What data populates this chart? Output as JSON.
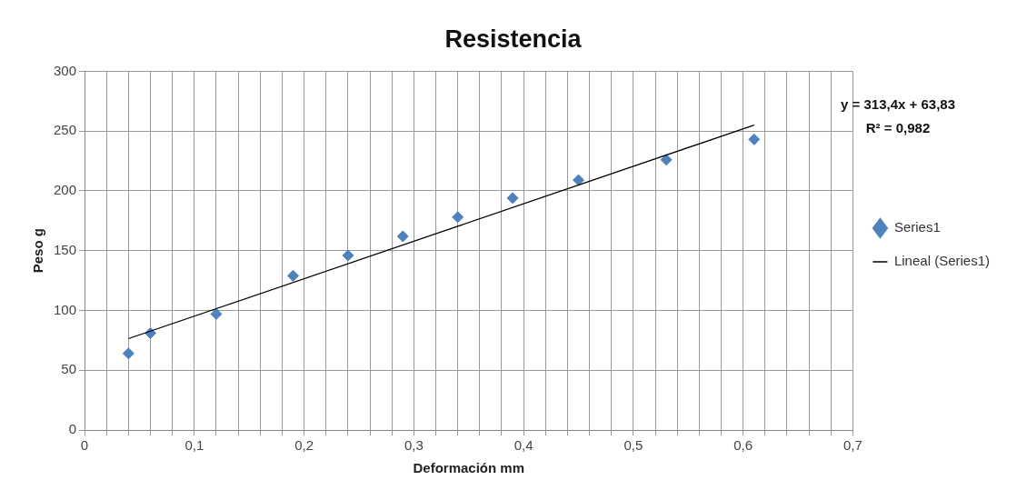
{
  "chart_data": {
    "type": "scatter",
    "title": "Resistencia",
    "xlabel": "Deformación mm",
    "ylabel": "Peso g",
    "xlim": [
      0,
      0.7
    ],
    "xticks": [
      0,
      {
        "value": 0.02,
        "label": null
      },
      {
        "value": 0.04,
        "label": null
      },
      {
        "value": 0.06,
        "label": null
      },
      {
        "value": 0.08,
        "label": null
      },
      {
        "value": 0.1,
        "label": "0,1"
      },
      {
        "value": 0.12,
        "label": null
      },
      {
        "value": 0.14,
        "label": null
      },
      {
        "value": 0.16,
        "label": null
      },
      {
        "value": 0.18,
        "label": null
      },
      {
        "value": 0.2,
        "label": "0,2"
      },
      {
        "value": 0.22,
        "label": null
      },
      {
        "value": 0.24,
        "label": null
      },
      {
        "value": 0.26,
        "label": null
      },
      {
        "value": 0.28,
        "label": null
      },
      {
        "value": 0.3,
        "label": "0,3"
      },
      {
        "value": 0.32,
        "label": null
      },
      {
        "value": 0.34,
        "label": null
      },
      {
        "value": 0.36,
        "label": null
      },
      {
        "value": 0.38,
        "label": null
      },
      {
        "value": 0.4,
        "label": "0,4"
      },
      {
        "value": 0.42,
        "label": null
      },
      {
        "value": 0.44,
        "label": null
      },
      {
        "value": 0.46,
        "label": null
      },
      {
        "value": 0.48,
        "label": null
      },
      {
        "value": 0.5,
        "label": "0,5"
      },
      {
        "value": 0.52,
        "label": null
      },
      {
        "value": 0.54,
        "label": null
      },
      {
        "value": 0.56,
        "label": null
      },
      {
        "value": 0.58,
        "label": null
      },
      {
        "value": 0.6,
        "label": "0,6"
      },
      {
        "value": 0.62,
        "label": null
      },
      {
        "value": 0.64,
        "label": null
      },
      {
        "value": 0.66,
        "label": null
      },
      {
        "value": 0.68,
        "label": null
      },
      {
        "value": 0.7,
        "label": "0,7"
      }
    ],
    "ylim": [
      0,
      300
    ],
    "yticks": [
      0,
      50,
      100,
      150,
      200,
      250,
      300
    ],
    "grid": true,
    "legend": "right",
    "series": [
      {
        "name": "Series1",
        "type": "scatter",
        "color": "#4f81bd",
        "marker": "diamond",
        "x": [
          0.04,
          0.06,
          0.12,
          0.19,
          0.24,
          0.29,
          0.34,
          0.39,
          0.45,
          0.53,
          0.61
        ],
        "values": [
          64,
          81,
          97,
          129,
          146,
          162,
          178,
          194,
          209,
          226,
          243
        ]
      },
      {
        "name": "Lineal (Series1)",
        "type": "line",
        "color": "#000000",
        "marker": "none",
        "x": [
          0.04,
          0.61
        ],
        "values": [
          76.4,
          255
        ]
      }
    ],
    "annotations": [
      "y = 313,4x + 63,83",
      "R² = 0,982"
    ]
  }
}
